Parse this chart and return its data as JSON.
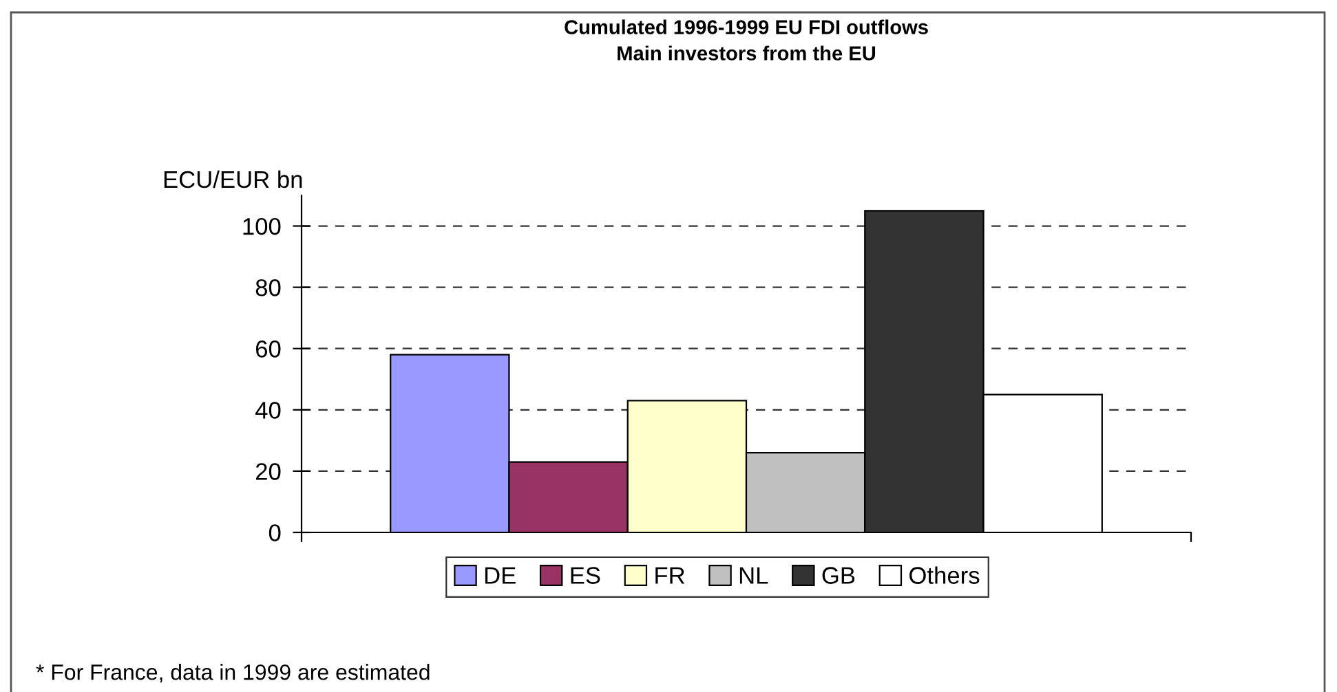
{
  "chart_data": {
    "type": "bar",
    "title": "Cumulated 1996-1999 EU FDI outflows",
    "subtitle": "Main investors from the EU",
    "ylabel": "ECU/EUR bn",
    "categories": [
      null
    ],
    "series": [
      {
        "name": "DE",
        "color": "#9999ff",
        "values": [
          58
        ]
      },
      {
        "name": "ES",
        "color": "#993366",
        "values": [
          23
        ]
      },
      {
        "name": "FR",
        "color": "#ffffcc",
        "values": [
          43
        ]
      },
      {
        "name": "NL",
        "color": "#c0c0c0",
        "values": [
          26
        ]
      },
      {
        "name": "GB",
        "color": "#333333",
        "values": [
          105
        ]
      },
      {
        "name": "Others",
        "color": "#ffffff",
        "values": [
          45
        ]
      }
    ],
    "ylim": [
      0,
      110
    ],
    "yticks": [
      0,
      20,
      40,
      60,
      80,
      100
    ],
    "grid": "y",
    "legend": "bottom",
    "annotations": [
      "* For France, data in 1999 are estimated"
    ]
  }
}
